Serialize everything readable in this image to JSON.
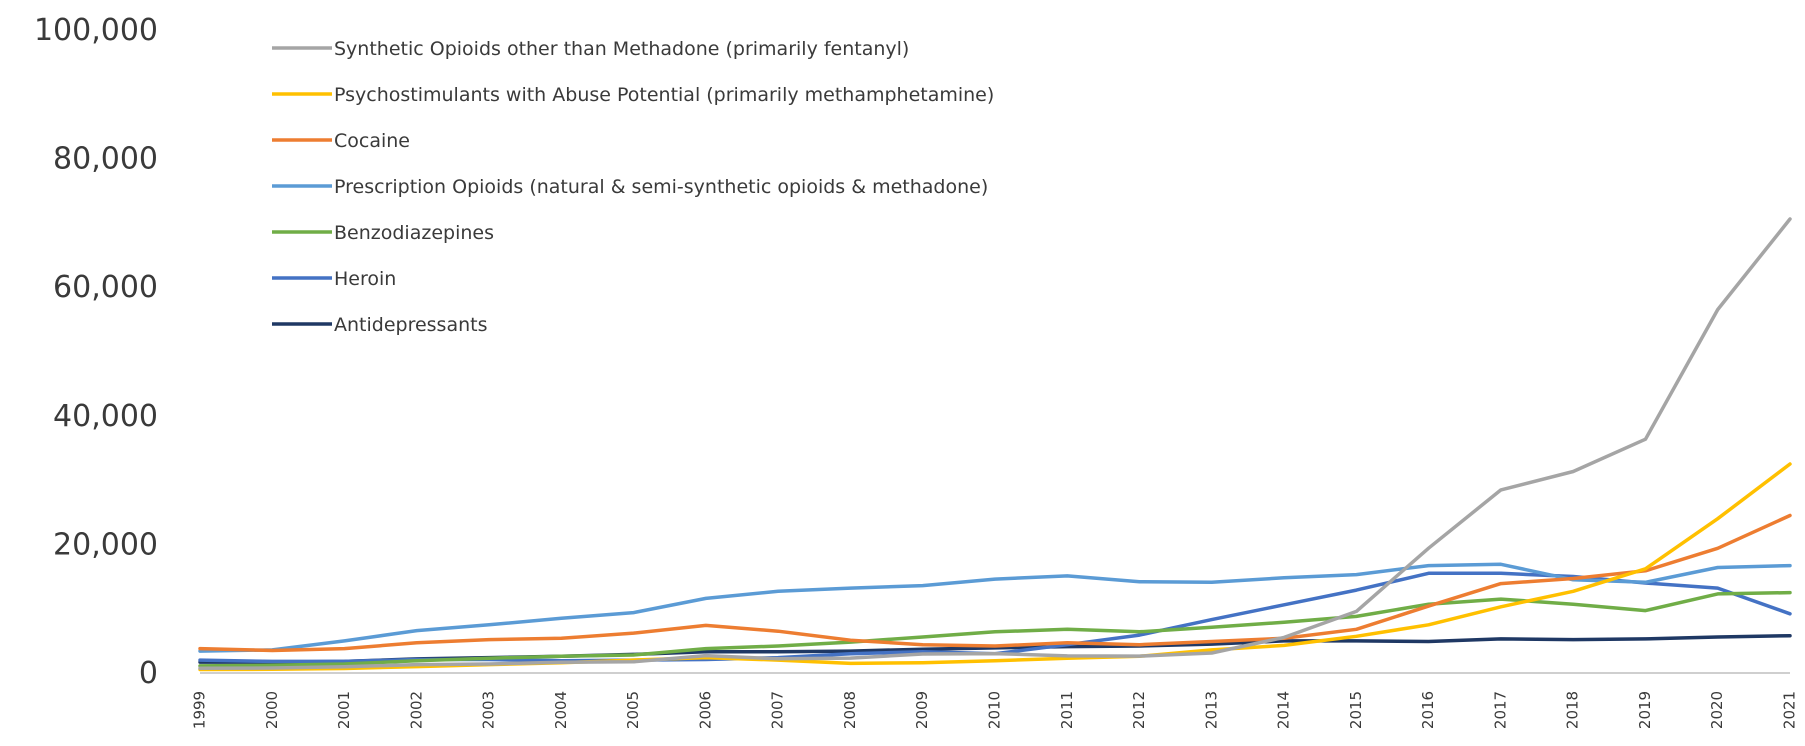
{
  "chart_data": {
    "type": "line",
    "title": "",
    "xlabel": "",
    "ylabel": "",
    "x": [
      "1999",
      "2000",
      "2001",
      "2002",
      "2003",
      "2004",
      "2005",
      "2006",
      "2007",
      "2008",
      "2009",
      "2010",
      "2011",
      "2012",
      "2013",
      "2014",
      "2015",
      "2016",
      "2017",
      "2018",
      "2019",
      "2020",
      "2021"
    ],
    "ylim": [
      0,
      100000
    ],
    "yticks": [
      0,
      20000,
      40000,
      60000,
      80000,
      100000
    ],
    "ytick_labels": [
      "0",
      "20,000",
      "40,000",
      "60,000",
      "80,000",
      "100,000"
    ],
    "grid": false,
    "legend_position": "top-left",
    "series": [
      {
        "name": "Synthetic Opioids other than Methadone (primarily fentanyl)",
        "color": "#a5a5a5",
        "values": [
          730,
          780,
          960,
          1300,
          1400,
          1660,
          1740,
          2710,
          2210,
          2310,
          2950,
          3010,
          2660,
          2630,
          3110,
          5540,
          9580,
          19410,
          28470,
          31340,
          36360,
          56520,
          70600
        ]
      },
      {
        "name": "Psychostimulants with Abuse Potential (primarily methamphetamine)",
        "color": "#ffc000",
        "values": [
          550,
          580,
          700,
          1000,
          1300,
          1600,
          2000,
          2400,
          2000,
          1500,
          1600,
          1900,
          2300,
          2600,
          3600,
          4300,
          5700,
          7500,
          10300,
          12700,
          16200,
          24000,
          32500
        ]
      },
      {
        "name": "Cocaine",
        "color": "#ed7d31",
        "values": [
          3800,
          3500,
          3800,
          4700,
          5200,
          5400,
          6200,
          7400,
          6500,
          5100,
          4400,
          4200,
          4700,
          4400,
          4900,
          5400,
          6800,
          10400,
          13900,
          14700,
          15900,
          19400,
          24500
        ]
      },
      {
        "name": "Prescription Opioids (natural & semi-synthetic opioids & methadone)",
        "color": "#5b9bd5",
        "values": [
          3400,
          3600,
          5000,
          6600,
          7500,
          8500,
          9400,
          11600,
          12700,
          13200,
          13600,
          14600,
          15100,
          14200,
          14100,
          14800,
          15300,
          16700,
          16900,
          14500,
          14100,
          16400,
          16700
        ]
      },
      {
        "name": "Benzodiazepines",
        "color": "#70ad47",
        "values": [
          1100,
          1200,
          1400,
          1900,
          2300,
          2600,
          2800,
          3800,
          4200,
          4800,
          5600,
          6400,
          6800,
          6400,
          7100,
          7900,
          8800,
          10700,
          11500,
          10700,
          9700,
          12300,
          12500
        ]
      },
      {
        "name": "Heroin",
        "color": "#4472c4",
        "values": [
          2000,
          1800,
          1800,
          2100,
          2100,
          1900,
          2000,
          2100,
          2400,
          3000,
          3300,
          3000,
          4400,
          5900,
          8300,
          10600,
          12900,
          15500,
          15500,
          15000,
          14000,
          13200,
          9200
        ]
      },
      {
        "name": "Antidepressants",
        "color": "#1f3864",
        "values": [
          1700,
          1700,
          1800,
          2200,
          2400,
          2600,
          2900,
          3300,
          3300,
          3400,
          3700,
          3900,
          4100,
          4200,
          4500,
          5000,
          5000,
          4900,
          5300,
          5200,
          5300,
          5600,
          5800
        ]
      }
    ]
  }
}
